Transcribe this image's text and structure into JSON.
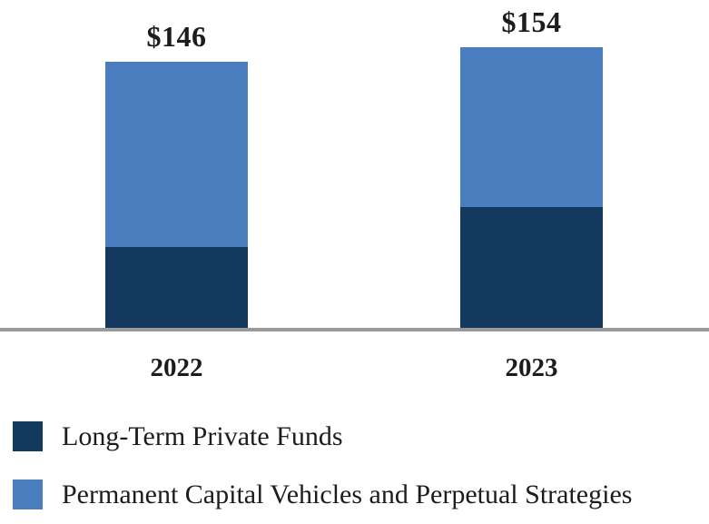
{
  "chart_data": {
    "type": "bar",
    "stacked": true,
    "categories": [
      "2022",
      "2023"
    ],
    "series": [
      {
        "name": "Long-Term Private Funds",
        "color": "#13395E",
        "values": [
          45,
          67
        ]
      },
      {
        "name": "Permanent Capital Vehicles and Perpetual Strategies",
        "color": "#4A7EBE",
        "values": [
          101,
          87
        ]
      }
    ],
    "totals": [
      146,
      154
    ],
    "total_labels": [
      "$146",
      "$154"
    ],
    "value_prefix": "$",
    "axis_line_color": "#9A9A9A",
    "grid": false,
    "legend_position": "bottom-left",
    "ylim": [
      0,
      160
    ]
  }
}
